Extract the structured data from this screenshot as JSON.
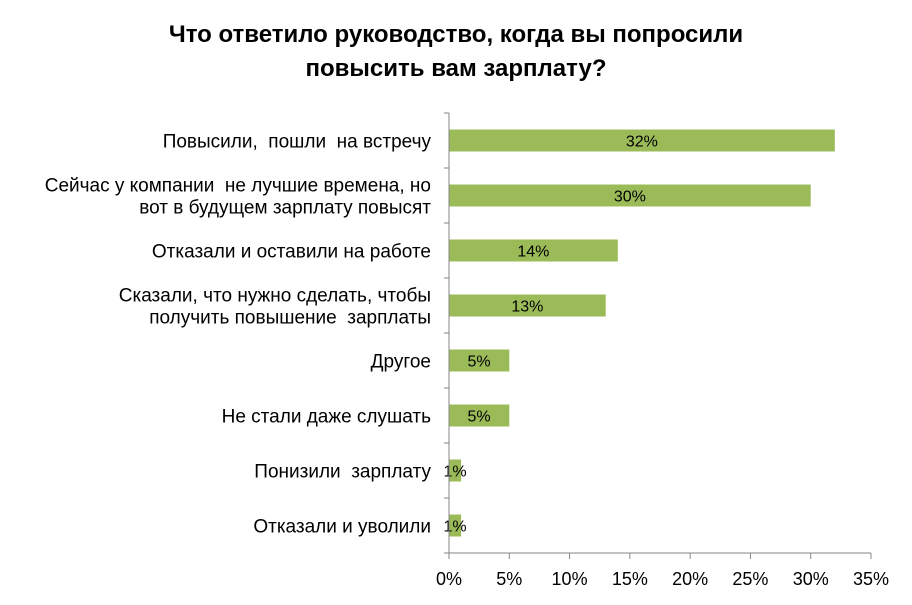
{
  "chart_data": {
    "type": "bar",
    "orientation": "horizontal",
    "title_lines": [
      "Что ответило руководство, когда вы попросили",
      "повысить вам зарплату?"
    ],
    "categories": [
      [
        "Повысили,  пошли  на встречу"
      ],
      [
        "Сейчас у компании  не лучшие времена, но",
        "вот в будущем зарплату повысят"
      ],
      [
        "Отказали и оставили на работе"
      ],
      [
        "Сказали, что нужно сделать, чтобы",
        "получить повышение  зарплаты"
      ],
      [
        "Другое"
      ],
      [
        "Не стали даже слушать"
      ],
      [
        "Понизили  зарплату"
      ],
      [
        "Отказали и уволили"
      ]
    ],
    "values": [
      32,
      30,
      14,
      13,
      5,
      5,
      1,
      1
    ],
    "data_labels": [
      "32%",
      "30%",
      "14%",
      "13%",
      "5%",
      "5%",
      "1%",
      "1%"
    ],
    "xlim": [
      0,
      35
    ],
    "xticks": [
      0,
      5,
      10,
      15,
      20,
      25,
      30,
      35
    ],
    "xtick_labels": [
      "0%",
      "5%",
      "10%",
      "15%",
      "20%",
      "25%",
      "30%",
      "35%"
    ],
    "bar_color": "#9bbb59",
    "grid": false,
    "legend": "none"
  }
}
